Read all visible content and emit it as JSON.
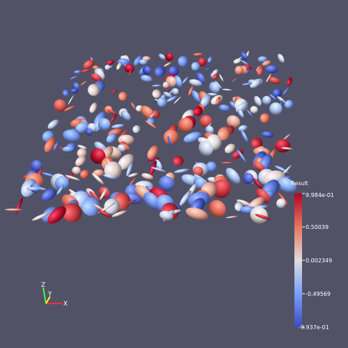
{
  "viewport": {
    "label": "3D render view"
  },
  "scene": {
    "description_seed": 1337,
    "glyph_count": 340,
    "value_range": [
      -0.9937,
      0.9984
    ]
  },
  "scalar_bar": {
    "title": "Result",
    "max_label": "9.984e-01",
    "tick_1": "0.50039",
    "tick_2": "0.002349",
    "tick_3": "-0.49569",
    "min_label": "-9.937e-01",
    "colors": {
      "high": "#b40426",
      "mid": "#dddddd",
      "low": "#3b4cc0"
    }
  },
  "axes": {
    "x_label": "X",
    "y_label": "Y",
    "z_label": "Z",
    "colors": {
      "x": "#ff3030",
      "y": "#ffff30",
      "z": "#40ff40"
    }
  }
}
